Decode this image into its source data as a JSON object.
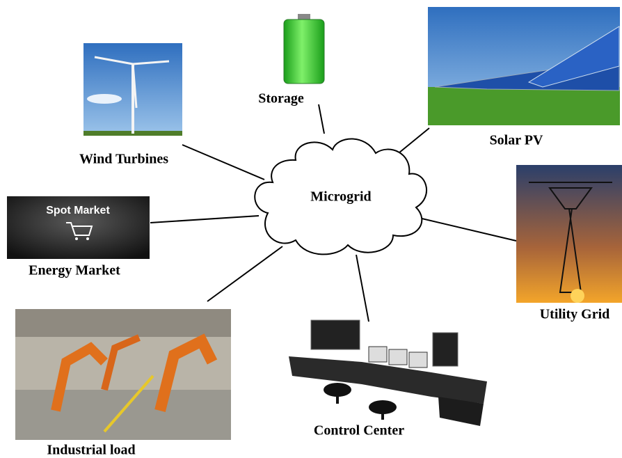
{
  "center": {
    "label": "Microgrid"
  },
  "nodes": [
    {
      "label": "Storage"
    },
    {
      "label": "Solar PV"
    },
    {
      "label": "Wind Turbines"
    },
    {
      "label": "Energy Market",
      "image_text": "Spot Market"
    },
    {
      "label": "Utility Grid"
    },
    {
      "label": "Industrial load"
    },
    {
      "label": "Control Center"
    }
  ]
}
